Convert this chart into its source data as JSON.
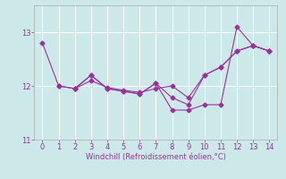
{
  "bg_color": "#cce8e8",
  "line_color": "#993399",
  "xlim": [
    -0.5,
    14.5
  ],
  "ylim": [
    11.0,
    13.5
  ],
  "yticks": [
    11,
    12,
    13
  ],
  "xticks": [
    0,
    1,
    2,
    3,
    4,
    5,
    6,
    7,
    8,
    9,
    10,
    11,
    12,
    13,
    14
  ],
  "xlabel": "Windchill (Refroidissement éolien,°C)",
  "series1_x": [
    0,
    1,
    2,
    3,
    4,
    5,
    6,
    7,
    8,
    9,
    10,
    11,
    12,
    13,
    14
  ],
  "series1_y": [
    12.8,
    12.0,
    11.95,
    12.2,
    11.95,
    11.9,
    11.85,
    12.05,
    11.55,
    11.55,
    11.65,
    11.65,
    13.1,
    12.75,
    12.65
  ],
  "series2_x": [
    1,
    2,
    3,
    4,
    5,
    6,
    7,
    8,
    9,
    10,
    11,
    12,
    13,
    14
  ],
  "series2_y": [
    12.0,
    11.95,
    12.1,
    11.97,
    11.92,
    11.88,
    11.95,
    12.0,
    11.78,
    12.2,
    12.35,
    12.65,
    12.75,
    12.65
  ],
  "series3_x": [
    2,
    3,
    4,
    5,
    6,
    7,
    8,
    9,
    10,
    11,
    12,
    13,
    14
  ],
  "series3_y": [
    11.95,
    12.2,
    11.95,
    11.9,
    11.85,
    12.05,
    11.78,
    11.65,
    12.2,
    12.35,
    12.65,
    12.75,
    12.65
  ]
}
